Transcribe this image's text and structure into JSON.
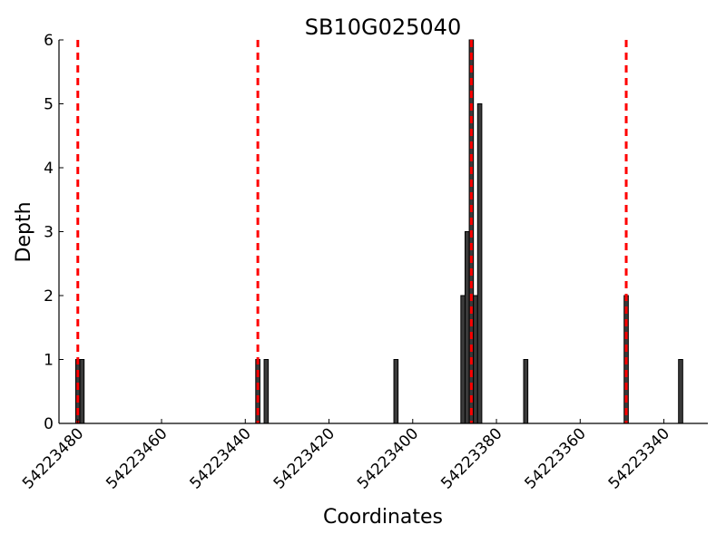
{
  "chart_data": {
    "type": "bar",
    "title": "SB10G025040",
    "xlabel": "Coordinates",
    "ylabel": "Depth",
    "x_reversed": true,
    "xlim": [
      54223484.5,
      54223329.5
    ],
    "ylim": [
      0,
      6
    ],
    "xticks": [
      54223480,
      54223460,
      54223440,
      54223420,
      54223400,
      54223380,
      54223360,
      54223340
    ],
    "yticks": [
      0,
      1,
      2,
      3,
      4,
      5,
      6
    ],
    "bar_width": 1,
    "bars": [
      {
        "x": 54223480,
        "value": 1
      },
      {
        "x": 54223479,
        "value": 1
      },
      {
        "x": 54223437,
        "value": 1
      },
      {
        "x": 54223435,
        "value": 1
      },
      {
        "x": 54223404,
        "value": 1
      },
      {
        "x": 54223388,
        "value": 2
      },
      {
        "x": 54223387,
        "value": 3
      },
      {
        "x": 54223386,
        "value": 6
      },
      {
        "x": 54223385,
        "value": 2
      },
      {
        "x": 54223384,
        "value": 5
      },
      {
        "x": 54223373,
        "value": 1
      },
      {
        "x": 54223349,
        "value": 2
      },
      {
        "x": 54223336,
        "value": 1
      }
    ],
    "reference_lines": [
      54223480,
      54223437,
      54223386,
      54223349
    ],
    "colors": {
      "bar_fill": "#3a3a3a",
      "bar_edge": "#000000",
      "reference_line": "#ff0000"
    }
  }
}
